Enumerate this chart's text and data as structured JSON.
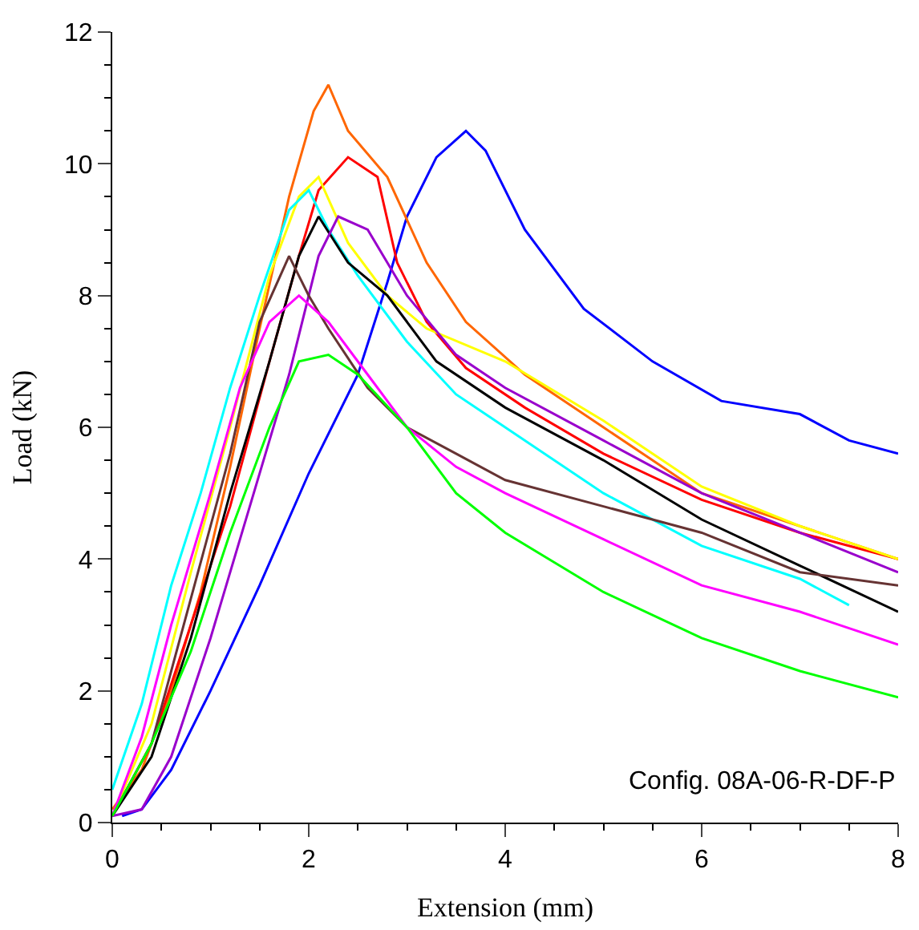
{
  "chart_data": {
    "type": "line",
    "xlabel": "Extension (mm)",
    "ylabel": "Load (kN)",
    "xlim": [
      0,
      8
    ],
    "xticks": [
      0,
      2,
      4,
      6,
      8
    ],
    "ylim": [
      0,
      12
    ],
    "yticks": [
      0,
      2,
      4,
      6,
      8,
      10,
      12
    ],
    "marker": "none",
    "line_style": "solid",
    "annotations": [
      "Config. 08A-06-R-DF-P"
    ],
    "series": [
      {
        "color": "#0000ff",
        "x": [
          0.1,
          0.3,
          0.6,
          1,
          1.5,
          2,
          2.5,
          2.8,
          3,
          3.3,
          3.6,
          3.8,
          4.2,
          4.8,
          5.5,
          6.2,
          7,
          7.5,
          8
        ],
        "values": [
          0.1,
          0.2,
          0.8,
          2,
          3.6,
          5.3,
          6.8,
          8.2,
          9.2,
          10.1,
          10.5,
          10.2,
          9.0,
          7.8,
          7.0,
          6.4,
          6.2,
          5.8,
          5.6
        ]
      },
      {
        "color": "#ff6600",
        "x": [
          0,
          0.3,
          0.6,
          0.9,
          1.2,
          1.5,
          1.8,
          2.05,
          2.2,
          2.4,
          2.8,
          3.2,
          3.6,
          4.2,
          5,
          6,
          7,
          8
        ],
        "values": [
          0.2,
          0.8,
          2.0,
          3.5,
          5.4,
          7.5,
          9.5,
          10.8,
          11.2,
          10.5,
          9.8,
          8.5,
          7.6,
          6.8,
          6.0,
          5.0,
          4.5,
          4.0
        ]
      },
      {
        "color": "#ff0000",
        "x": [
          0,
          0.4,
          0.8,
          1.2,
          1.6,
          1.9,
          2.1,
          2.4,
          2.7,
          2.9,
          3.2,
          3.6,
          4.2,
          5,
          6,
          7,
          8
        ],
        "values": [
          0.1,
          1.2,
          3.0,
          4.8,
          7.0,
          8.6,
          9.6,
          10.1,
          9.8,
          8.5,
          7.6,
          6.9,
          6.3,
          5.6,
          4.9,
          4.4,
          4.0
        ]
      },
      {
        "color": "#ffff00",
        "x": [
          0,
          0.4,
          0.8,
          1.2,
          1.6,
          1.9,
          2.1,
          2.4,
          2.8,
          3.2,
          4,
          5,
          6,
          7,
          8
        ],
        "values": [
          0.1,
          1.5,
          3.8,
          6.0,
          8.3,
          9.5,
          9.8,
          8.8,
          8.0,
          7.5,
          7.0,
          6.1,
          5.1,
          4.5,
          4.0
        ]
      },
      {
        "color": "#00ffff",
        "x": [
          0,
          0.3,
          0.6,
          0.9,
          1.2,
          1.5,
          1.8,
          2.0,
          2.2,
          2.5,
          3,
          3.5,
          4,
          5,
          6,
          7,
          7.5
        ],
        "values": [
          0.5,
          1.8,
          3.6,
          5.0,
          6.6,
          8.0,
          9.3,
          9.6,
          9.0,
          8.3,
          7.3,
          6.5,
          6.0,
          5.0,
          4.2,
          3.7,
          3.3
        ]
      },
      {
        "color": "#000000",
        "x": [
          0,
          0.4,
          0.8,
          1.2,
          1.6,
          1.9,
          2.1,
          2.4,
          2.8,
          3.3,
          4,
          5,
          6,
          7,
          8
        ],
        "values": [
          0.1,
          1.0,
          2.8,
          5.0,
          7.0,
          8.6,
          9.2,
          8.5,
          8.0,
          7.0,
          6.3,
          5.5,
          4.6,
          3.9,
          3.2
        ]
      },
      {
        "color": "#9900cc",
        "x": [
          0,
          0.3,
          0.6,
          1,
          1.4,
          1.8,
          2.1,
          2.3,
          2.6,
          3,
          3.5,
          4,
          5,
          6,
          7,
          8
        ],
        "values": [
          0.1,
          0.2,
          1.0,
          2.8,
          4.8,
          6.8,
          8.6,
          9.2,
          9.0,
          8.0,
          7.1,
          6.6,
          5.8,
          5.0,
          4.4,
          3.8
        ]
      },
      {
        "color": "#663333",
        "x": [
          0,
          0.4,
          0.8,
          1.2,
          1.5,
          1.8,
          2,
          2.2,
          2.6,
          3,
          3.5,
          4,
          5,
          6,
          7,
          8
        ],
        "values": [
          0.1,
          1.2,
          3.4,
          5.6,
          7.6,
          8.6,
          8.0,
          7.5,
          6.6,
          6.0,
          5.6,
          5.2,
          4.8,
          4.4,
          3.8,
          3.6
        ]
      },
      {
        "color": "#ff00ff",
        "x": [
          0,
          0.3,
          0.6,
          1,
          1.3,
          1.6,
          1.9,
          2.2,
          2.6,
          3,
          3.5,
          4,
          5,
          6,
          7,
          8
        ],
        "values": [
          0.1,
          1.3,
          3.0,
          5.0,
          6.6,
          7.6,
          8.0,
          7.6,
          6.8,
          6.0,
          5.4,
          5.0,
          4.3,
          3.6,
          3.2,
          2.7
        ]
      },
      {
        "color": "#00ff00",
        "x": [
          0,
          0.4,
          0.8,
          1.2,
          1.6,
          1.9,
          2.2,
          2.5,
          3,
          3.5,
          4,
          5,
          6,
          7,
          8
        ],
        "values": [
          0.1,
          1.2,
          2.6,
          4.4,
          6.0,
          7.0,
          7.1,
          6.8,
          6.0,
          5.0,
          4.4,
          3.5,
          2.8,
          2.3,
          1.9
        ]
      }
    ]
  }
}
